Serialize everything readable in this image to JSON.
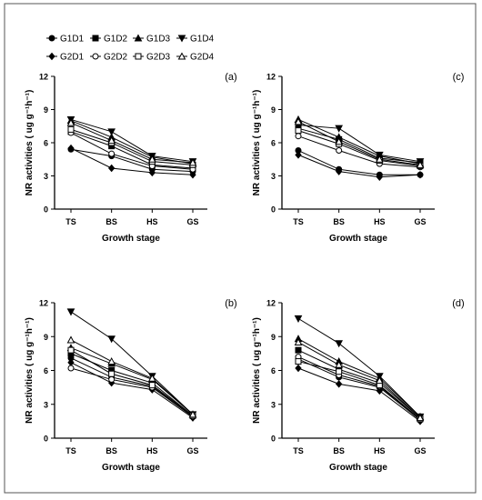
{
  "legend": {
    "series": [
      "G1D1",
      "G1D2",
      "G1D3",
      "G1D4",
      "G2D1",
      "G2D2",
      "G2D3",
      "G2D4"
    ]
  },
  "chart_data": [
    {
      "type": "line",
      "panel": "(a)",
      "xlabel": "Growth stage",
      "ylabel": "NR activities ( ug g⁻¹h⁻¹)",
      "categories": [
        "TS",
        "BS",
        "HS",
        "GS"
      ],
      "ylim": [
        0,
        12
      ],
      "yticks": [
        0,
        3,
        6,
        9,
        12
      ],
      "series": [
        {
          "name": "G1D1",
          "values": [
            5.4,
            4.8,
            3.6,
            3.4
          ]
        },
        {
          "name": "G1D2",
          "values": [
            7.0,
            5.7,
            4.0,
            3.7
          ]
        },
        {
          "name": "G1D3",
          "values": [
            8.0,
            6.5,
            4.7,
            4.1
          ]
        },
        {
          "name": "G1D4",
          "values": [
            8.1,
            7.0,
            4.8,
            4.3
          ]
        },
        {
          "name": "G2D1",
          "values": [
            5.5,
            3.7,
            3.3,
            3.1
          ]
        },
        {
          "name": "G2D2",
          "values": [
            6.9,
            5.0,
            3.9,
            3.6
          ]
        },
        {
          "name": "G2D3",
          "values": [
            7.2,
            6.0,
            4.3,
            4.0
          ]
        },
        {
          "name": "G2D4",
          "values": [
            7.8,
            6.2,
            4.5,
            4.2
          ]
        }
      ]
    },
    {
      "type": "line",
      "panel": "(c)",
      "xlabel": "Growth stage",
      "ylabel": "NR activities ( ug g⁻¹h⁻¹)",
      "categories": [
        "TS",
        "BS",
        "HS",
        "GS"
      ],
      "ylim": [
        0,
        12
      ],
      "yticks": [
        0,
        3,
        6,
        9,
        12
      ],
      "series": [
        {
          "name": "G1D1",
          "values": [
            5.3,
            3.6,
            3.1,
            3.1
          ]
        },
        {
          "name": "G1D2",
          "values": [
            7.3,
            6.3,
            4.6,
            4.2
          ]
        },
        {
          "name": "G1D3",
          "values": [
            8.1,
            6.5,
            4.8,
            4.1
          ]
        },
        {
          "name": "G1D4",
          "values": [
            7.6,
            7.3,
            4.9,
            4.3
          ]
        },
        {
          "name": "G2D1",
          "values": [
            4.9,
            3.4,
            2.9,
            3.1
          ]
        },
        {
          "name": "G2D2",
          "values": [
            6.6,
            5.3,
            4.1,
            3.8
          ]
        },
        {
          "name": "G2D3",
          "values": [
            7.1,
            5.9,
            4.4,
            3.9
          ]
        },
        {
          "name": "G2D4",
          "values": [
            7.9,
            6.1,
            4.5,
            4.0
          ]
        }
      ]
    },
    {
      "type": "line",
      "panel": "(b)",
      "xlabel": "Growth stage",
      "ylabel": "NR activities ( ug g⁻¹h⁻¹)",
      "categories": [
        "TS",
        "BS",
        "HS",
        "GS"
      ],
      "ylim": [
        0,
        12
      ],
      "yticks": [
        0,
        3,
        6,
        9,
        12
      ],
      "series": [
        {
          "name": "G1D1",
          "values": [
            7.1,
            5.4,
            4.6,
            1.9
          ]
        },
        {
          "name": "G1D2",
          "values": [
            7.5,
            6.0,
            4.9,
            2.0
          ]
        },
        {
          "name": "G1D3",
          "values": [
            8.0,
            6.6,
            5.2,
            2.1
          ]
        },
        {
          "name": "G1D4",
          "values": [
            11.2,
            8.8,
            5.5,
            2.1
          ]
        },
        {
          "name": "G2D1",
          "values": [
            6.7,
            4.9,
            4.3,
            1.8
          ]
        },
        {
          "name": "G2D2",
          "values": [
            6.2,
            5.2,
            4.5,
            1.9
          ]
        },
        {
          "name": "G2D3",
          "values": [
            7.8,
            5.7,
            4.7,
            2.0
          ]
        },
        {
          "name": "G2D4",
          "values": [
            8.7,
            6.8,
            5.3,
            2.1
          ]
        }
      ]
    },
    {
      "type": "line",
      "panel": "(d)",
      "xlabel": "Growth stage",
      "ylabel": "NR activities ( ug g⁻¹h⁻¹)",
      "categories": [
        "TS",
        "BS",
        "HS",
        "GS"
      ],
      "ylim": [
        0,
        12
      ],
      "yticks": [
        0,
        3,
        6,
        9,
        12
      ],
      "series": [
        {
          "name": "G1D1",
          "values": [
            7.0,
            5.4,
            4.5,
            1.6
          ]
        },
        {
          "name": "G1D2",
          "values": [
            7.8,
            6.1,
            4.9,
            1.8
          ]
        },
        {
          "name": "G1D3",
          "values": [
            8.8,
            6.8,
            5.3,
            1.9
          ]
        },
        {
          "name": "G1D4",
          "values": [
            10.6,
            8.4,
            5.5,
            1.9
          ]
        },
        {
          "name": "G2D1",
          "values": [
            6.2,
            4.8,
            4.2,
            1.5
          ]
        },
        {
          "name": "G2D2",
          "values": [
            7.2,
            5.6,
            4.6,
            1.7
          ]
        },
        {
          "name": "G2D3",
          "values": [
            6.8,
            5.9,
            4.7,
            1.7
          ]
        },
        {
          "name": "G2D4",
          "values": [
            8.5,
            6.5,
            5.1,
            1.8
          ]
        }
      ]
    }
  ]
}
